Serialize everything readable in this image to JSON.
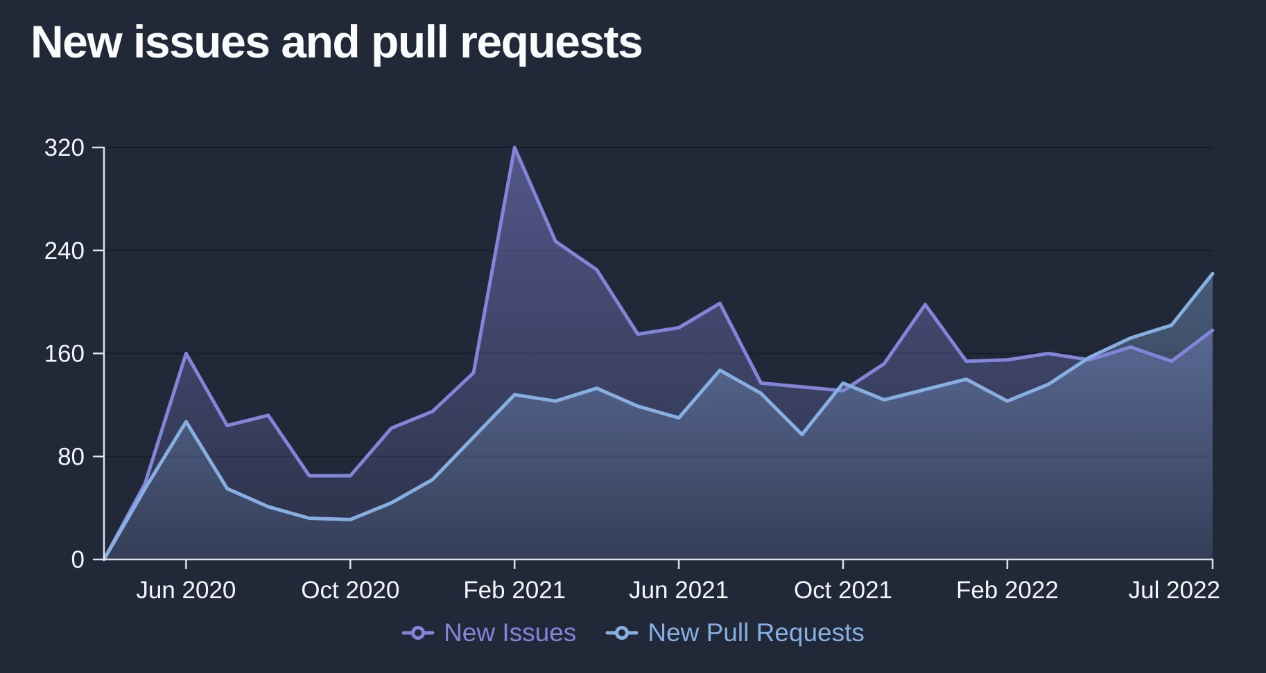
{
  "title": "New issues and pull requests",
  "background_color": "#212837",
  "legend": [
    {
      "label": "New Issues",
      "color": "#8285d8"
    },
    {
      "label": "New Pull Requests",
      "color": "#88afe2"
    }
  ],
  "chart_data": {
    "type": "area",
    "title": "New issues and pull requests",
    "x": [
      "Apr 2020",
      "May 2020",
      "Jun 2020",
      "Jul 2020",
      "Aug 2020",
      "Sep 2020",
      "Oct 2020",
      "Nov 2020",
      "Dec 2020",
      "Jan 2021",
      "Feb 2021",
      "Mar 2021",
      "Apr 2021",
      "May 2021",
      "Jun 2021",
      "Jul 2021",
      "Aug 2021",
      "Sep 2021",
      "Oct 2021",
      "Nov 2021",
      "Dec 2021",
      "Jan 2022",
      "Feb 2022",
      "Mar 2022",
      "Apr 2022",
      "May 2022",
      "Jun 2022",
      "Jul 2022"
    ],
    "series": [
      {
        "name": "New Issues",
        "color": "#8285d8",
        "values": [
          0,
          59,
          160,
          104,
          112,
          65,
          65,
          102,
          115,
          145,
          320,
          247,
          225,
          175,
          180,
          199,
          137,
          134,
          131,
          152,
          198,
          154,
          155,
          160,
          155,
          165,
          154,
          178
        ]
      },
      {
        "name": "New Pull Requests",
        "color": "#88afe2",
        "values": [
          0,
          55,
          107,
          55,
          41,
          32,
          31,
          44,
          62,
          95,
          128,
          123,
          133,
          119,
          110,
          147,
          129,
          97,
          137,
          124,
          132,
          140,
          123,
          136,
          157,
          172,
          182,
          222
        ]
      }
    ],
    "ylim": [
      0,
      320
    ],
    "yticks": [
      0,
      80,
      160,
      240,
      320
    ],
    "xticks": [
      {
        "index": 2,
        "label": "Jun 2020"
      },
      {
        "index": 6,
        "label": "Oct 2020"
      },
      {
        "index": 10,
        "label": "Feb 2021"
      },
      {
        "index": 14,
        "label": "Jun 2021"
      },
      {
        "index": 18,
        "label": "Oct 2021"
      },
      {
        "index": 22,
        "label": "Feb 2022"
      },
      {
        "index": 27,
        "label": "Jul 2022"
      }
    ],
    "grid": "horizontal-only",
    "legend_position": "bottom",
    "axis_color": "#dde3ec",
    "tick_label_color": "#f3f5f9",
    "area_fill_opacity_top": 0.5,
    "area_fill_opacity_bottom": 0.1
  }
}
